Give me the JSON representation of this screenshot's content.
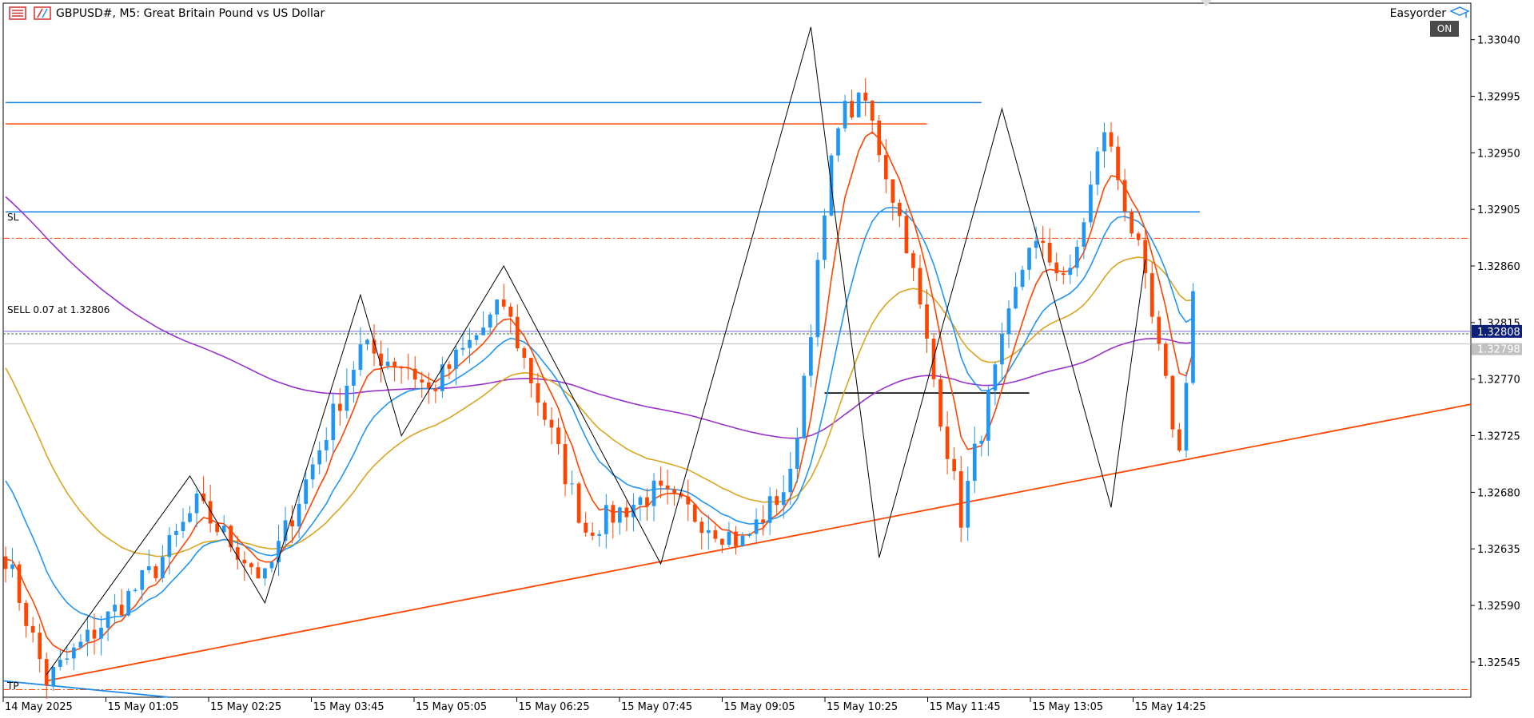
{
  "header": {
    "symbol_title": "GBPUSD#, M5:  Great Britain Pound vs US Dollar",
    "expert_name": "Easyorder",
    "on_label": "ON"
  },
  "labels": {
    "sl": "SL",
    "tp": "TP",
    "sell": "SELL 0.07 at 1.32806"
  },
  "price_tags": {
    "current": "1.32808",
    "ask": "1.32798"
  },
  "colors": {
    "bull": "#2196f3",
    "bear": "#ff4500",
    "ma_fast": "#ff4500",
    "ma_mid": "#2196f3",
    "ma_slow": "#daa520",
    "ma_long": "#9932cc",
    "zigzag": "#000000",
    "level_blue": "#1e88e5",
    "level_red": "#ff4500",
    "trend_red": "#ff4500",
    "trend_blue": "#1e88e5",
    "price_tag_bg": "#0c1f7a",
    "ask_tag_bg": "#c0c0c0"
  },
  "chart_data": {
    "type": "candlestick",
    "symbol": "GBPUSD#",
    "timeframe": "M5",
    "y_ticks": [
      "1.33040",
      "1.32995",
      "1.32950",
      "1.32905",
      "1.32860",
      "1.32815",
      "1.32770",
      "1.32725",
      "1.32680",
      "1.32635",
      "1.32590",
      "1.32545"
    ],
    "x_ticks": [
      "14 May 2025",
      "15 May 01:05",
      "15 May 02:25",
      "15 May 03:45",
      "15 May 05:05",
      "15 May 06:25",
      "15 May 07:45",
      "15 May 09:05",
      "15 May 10:25",
      "15 May 11:45",
      "15 May 13:05",
      "15 May 14:25"
    ],
    "ylim": [
      1.32517,
      1.33069
    ],
    "candle_count": 175,
    "price_swings": [
      [
        0,
        1.3263
      ],
      [
        6,
        1.3253
      ],
      [
        22,
        1.3262
      ],
      [
        28,
        1.3267
      ],
      [
        38,
        1.3261
      ],
      [
        52,
        1.32794
      ],
      [
        59,
        1.3278
      ],
      [
        62,
        1.3276
      ],
      [
        73,
        1.3283
      ],
      [
        85,
        1.3265
      ],
      [
        95,
        1.3268
      ],
      [
        108,
        1.3264
      ],
      [
        115,
        1.3269
      ],
      [
        122,
        1.3298
      ],
      [
        126,
        1.3299
      ],
      [
        132,
        1.3288
      ],
      [
        140,
        1.3266
      ],
      [
        142,
        1.3271
      ],
      [
        150,
        1.3288
      ],
      [
        156,
        1.3285
      ],
      [
        161,
        1.3297
      ],
      [
        166,
        1.3287
      ],
      [
        172,
        1.3271
      ],
      [
        174,
        1.3284
      ]
    ],
    "zigzag": [
      [
        6,
        1.32535
      ],
      [
        27,
        1.32693
      ],
      [
        38,
        1.32592
      ],
      [
        52,
        1.32837
      ],
      [
        58,
        1.32725
      ],
      [
        73,
        1.3286
      ],
      [
        96,
        1.32623
      ],
      [
        118,
        1.3305
      ],
      [
        128,
        1.32628
      ],
      [
        146,
        1.32985
      ],
      [
        162,
        1.32668
      ],
      [
        167,
        1.32865
      ]
    ],
    "levels": [
      {
        "price": 1.3299,
        "x_start": 0,
        "x_end": 143,
        "color": "blue"
      },
      {
        "price": 1.32973,
        "x_start": 0,
        "x_end": 135,
        "color": "red"
      },
      {
        "price": 1.32903,
        "x_start": 0,
        "x_end": 175,
        "color": "blue"
      },
      {
        "price": 1.32759,
        "x_start": 120,
        "x_end": 150,
        "color": "black"
      }
    ],
    "sl_price": 1.32882,
    "tp_price": 1.32523,
    "sell_price": 1.32806,
    "current_price": 1.32808,
    "ask_price": 1.32798,
    "trendline_red": [
      [
        6,
        1.3253
      ],
      [
        175,
        1.3275
      ]
    ],
    "trendline_blue": [
      [
        0,
        1.3253
      ],
      [
        24,
        1.32517
      ]
    ],
    "ma_start": {
      "fast": 1.3263,
      "mid": 1.327,
      "slow": 1.3279,
      "long": 1.3292
    }
  }
}
